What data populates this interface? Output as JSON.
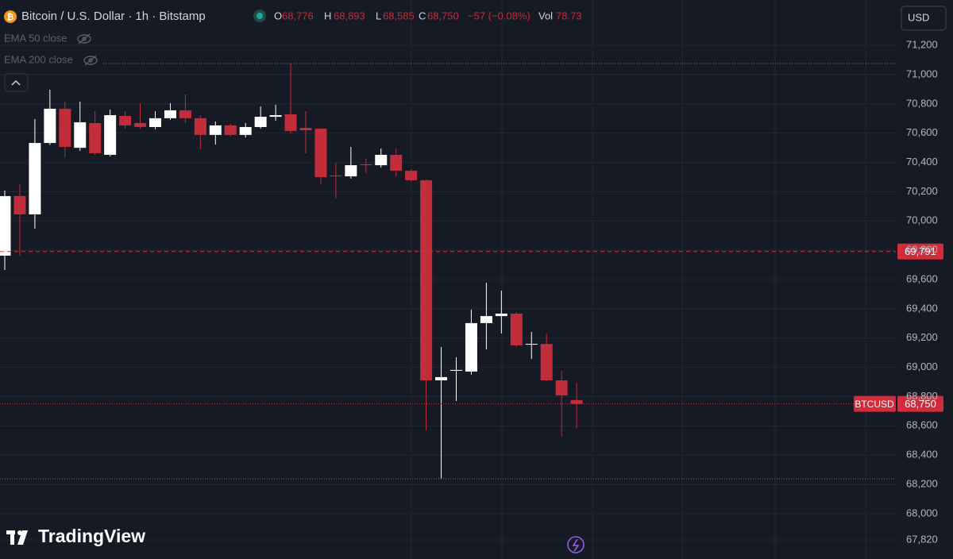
{
  "chart_data": {
    "type": "candlestick",
    "title": "Bitcoin / U.S. Dollar · 1h · Bitstamp",
    "ohlc_legend": [
      {
        "label": "O",
        "value": "68,776"
      },
      {
        "label": "H",
        "value": "68,893"
      },
      {
        "label": "L",
        "value": "68,585"
      },
      {
        "label": "C",
        "value": "68,750"
      }
    ],
    "change": "−57 (−0.08%)",
    "volume": {
      "label": "Vol",
      "value": "78.73"
    },
    "indicators": [
      "EMA 50 close",
      "EMA 200 close"
    ],
    "currency": "USD",
    "brand": "TradingView",
    "up_color": "#ffffff",
    "down_color": "#c12d3a",
    "open": [
      69763,
      70170,
      70045,
      70533,
      70767,
      70500,
      70669,
      70452,
      70718,
      70669,
      70642,
      70702,
      70756,
      70702,
      70588,
      70653,
      70588,
      70642,
      70712,
      70729,
      70636,
      70631,
      70311,
      70305,
      70387,
      70381,
      70452,
      70343,
      70278,
      68911,
      68976,
      68971,
      69302,
      69350,
      69367,
      69155,
      69160,
      68911,
      68776
    ],
    "high": [
      70208,
      70251,
      70696,
      70897,
      70816,
      70816,
      70750,
      70761,
      70750,
      70805,
      70750,
      70805,
      70864,
      70723,
      70680,
      70663,
      70669,
      70783,
      70794,
      71076,
      70750,
      70631,
      70398,
      70506,
      70425,
      70495,
      70495,
      70354,
      70283,
      69139,
      69068,
      69394,
      69578,
      69524,
      69378,
      69242,
      69231,
      68976,
      68893
    ],
    "low": [
      69665,
      69763,
      69947,
      70520,
      70436,
      70479,
      70452,
      70441,
      70631,
      70631,
      70626,
      70691,
      70669,
      70490,
      70522,
      70577,
      70571,
      70631,
      70685,
      70598,
      70463,
      70251,
      70154,
      70289,
      70327,
      70365,
      70305,
      70267,
      68569,
      68238,
      68770,
      68950,
      69123,
      69231,
      69139,
      69057,
      68906,
      68526,
      68585
    ],
    "close": [
      70170,
      70045,
      70533,
      70767,
      70506,
      70674,
      70463,
      70723,
      70653,
      70642,
      70702,
      70756,
      70702,
      70588,
      70653,
      70588,
      70642,
      70712,
      70723,
      70615,
      70620,
      70300,
      70305,
      70381,
      70381,
      70452,
      70343,
      70278,
      68911,
      68933,
      68982,
      69302,
      69350,
      69367,
      69150,
      69160,
      68911,
      68808,
      68750
    ],
    "price_lines": [
      {
        "value": 69791,
        "label": "69,791",
        "style": "dashed"
      },
      {
        "value": 68750,
        "label": "68,750",
        "name": "BTCUSD",
        "style": "dotted"
      }
    ],
    "ylim": [
      67690,
      71510
    ],
    "yticks": [
      {
        "value": 71200,
        "label": "71,200"
      },
      {
        "value": 71000,
        "label": "71,000"
      },
      {
        "value": 70800,
        "label": "70,800"
      },
      {
        "value": 70600,
        "label": "70,600"
      },
      {
        "value": 70400,
        "label": "70,400"
      },
      {
        "value": 70200,
        "label": "70,200"
      },
      {
        "value": 70000,
        "label": "70,000"
      },
      {
        "value": 69800,
        "label": "69,800"
      },
      {
        "value": 69600,
        "label": "69,600"
      },
      {
        "value": 69400,
        "label": "69,400"
      },
      {
        "value": 69200,
        "label": "69,200"
      },
      {
        "value": 69000,
        "label": "69,000"
      },
      {
        "value": 68800,
        "label": "68,800"
      },
      {
        "value": 68600,
        "label": "68,600"
      },
      {
        "value": 68400,
        "label": "68,400"
      },
      {
        "value": 68200,
        "label": "68,200"
      },
      {
        "value": 68000,
        "label": "68,000"
      },
      {
        "value": 67820,
        "label": "67,820"
      }
    ],
    "grid": true
  }
}
